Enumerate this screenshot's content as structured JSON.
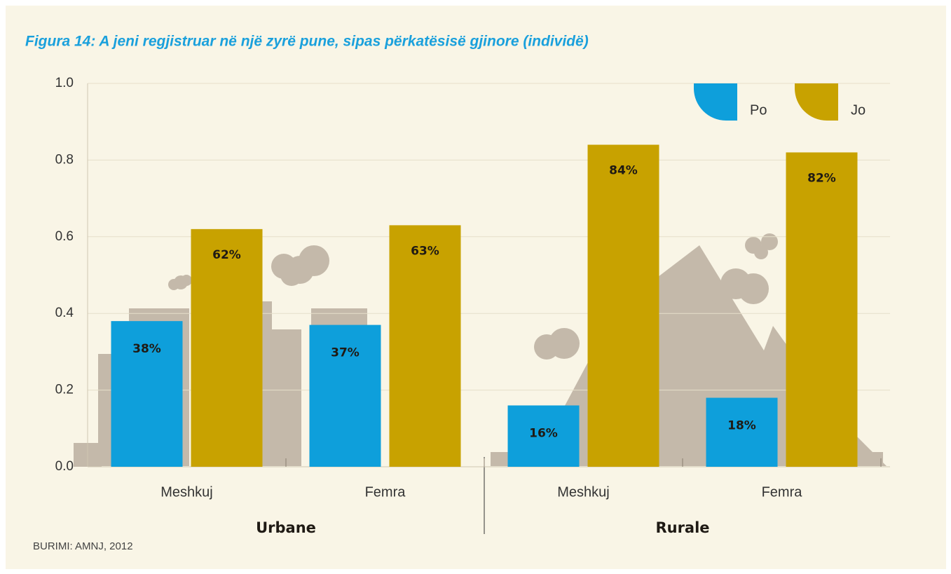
{
  "chart_data": {
    "type": "bar",
    "title": "Figura 14: A jeni regjistruar në një zyrë pune, sipas përkatësisë gjinore (individë)",
    "source": "BURIMI: AMNJ, 2012",
    "categories": [
      "Meshkuj",
      "Femra",
      "Meshkuj",
      "Femra"
    ],
    "groups": [
      {
        "name": "Urbane",
        "categories": [
          0,
          1
        ]
      },
      {
        "name": "Rurale",
        "categories": [
          2,
          3
        ]
      }
    ],
    "series": [
      {
        "name": "Po",
        "color": "#0e9fdb",
        "values": [
          0.38,
          0.37,
          0.16,
          0.18
        ],
        "value_labels": [
          "38%",
          "37%",
          "16%",
          "18%"
        ]
      },
      {
        "name": "Jo",
        "color": "#c8a200",
        "values": [
          0.62,
          0.63,
          0.84,
          0.82
        ],
        "value_labels": [
          "62%",
          "63%",
          "84%",
          "82%"
        ]
      }
    ],
    "ylim": [
      0,
      1
    ],
    "yticks": [
      {
        "value": 0,
        "label": "0.0"
      },
      0.2,
      0.4,
      0.6,
      0.8,
      {
        "value": 1,
        "label": "1.0"
      }
    ],
    "grid": true,
    "legend": "top-right"
  }
}
